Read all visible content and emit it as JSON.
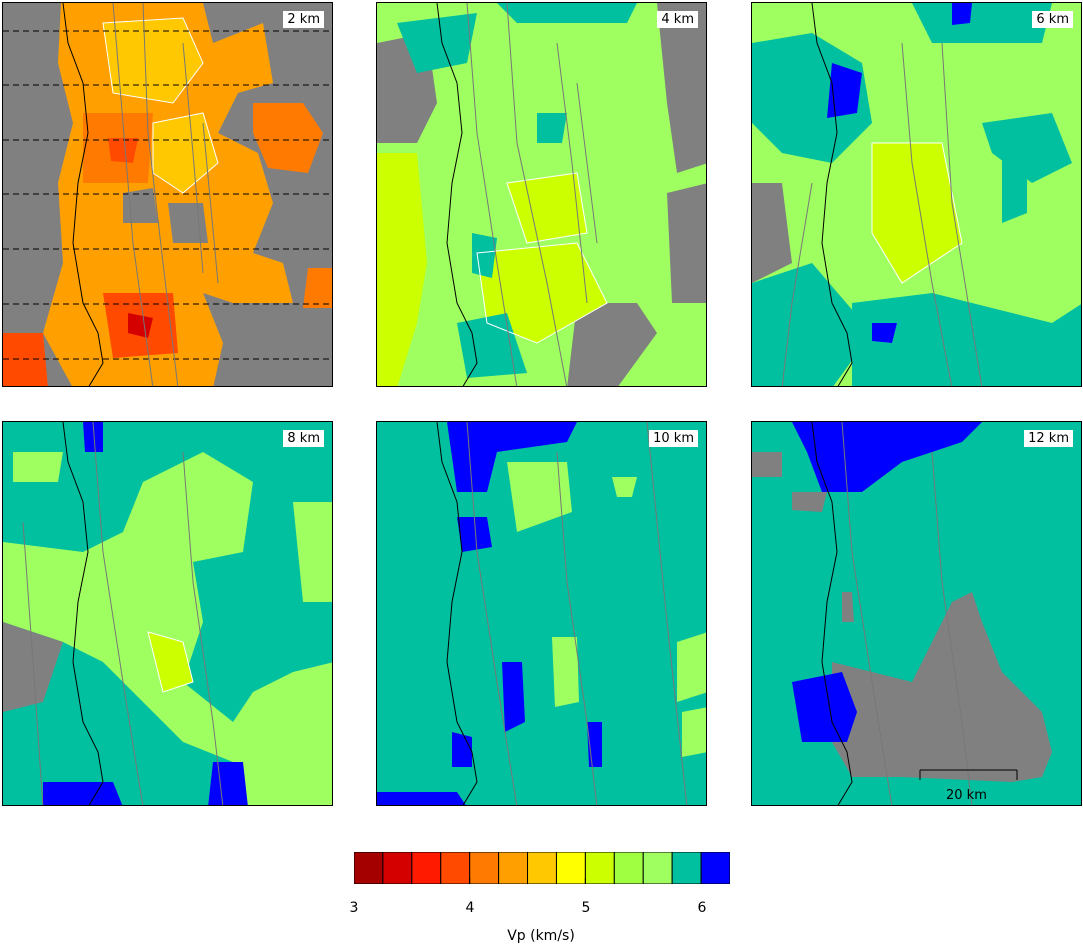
{
  "panels": [
    {
      "depth_label": "2 km"
    },
    {
      "depth_label": "4 km"
    },
    {
      "depth_label": "6 km"
    },
    {
      "depth_label": "8 km"
    },
    {
      "depth_label": "10 km"
    },
    {
      "depth_label": "12 km"
    }
  ],
  "colorbar": {
    "title": "Vp (km/s)",
    "ticks": [
      "3",
      "4",
      "5",
      "6"
    ],
    "tick_values": [
      3,
      4,
      5,
      6
    ],
    "min": 3,
    "max": 6.25,
    "step": 0.25,
    "colors": [
      "#a50000",
      "#d40000",
      "#ff1a00",
      "#ff4a00",
      "#ff7a00",
      "#ffa000",
      "#ffc800",
      "#ffff00",
      "#ccff00",
      "#a0ff40",
      "#a0ff60",
      "#00c0a0",
      "#0000ff"
    ]
  },
  "scale_bar": {
    "label": "20 km"
  },
  "colors": {
    "no_data": "#808080",
    "contour": "#ffffff",
    "coast": "#000000",
    "faults": "#777777"
  }
}
